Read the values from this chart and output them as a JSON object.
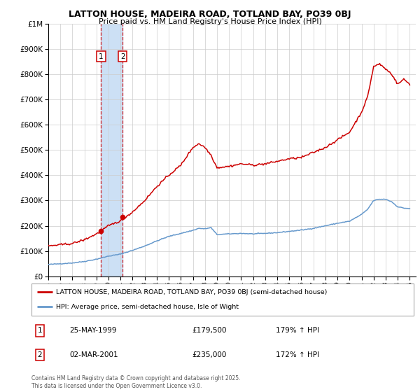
{
  "title": "LATTON HOUSE, MADEIRA ROAD, TOTLAND BAY, PO39 0BJ",
  "subtitle": "Price paid vs. HM Land Registry's House Price Index (HPI)",
  "legend_label_red": "LATTON HOUSE, MADEIRA ROAD, TOTLAND BAY, PO39 0BJ (semi-detached house)",
  "legend_label_blue": "HPI: Average price, semi-detached house, Isle of Wight",
  "footer": "Contains HM Land Registry data © Crown copyright and database right 2025.\nThis data is licensed under the Open Government Licence v3.0.",
  "transaction1": {
    "num": "1",
    "date": "25-MAY-1999",
    "price": "£179,500",
    "hpi": "179% ↑ HPI",
    "year": 1999.38
  },
  "transaction2": {
    "num": "2",
    "date": "02-MAR-2001",
    "price": "£235,000",
    "hpi": "172% ↑ HPI",
    "year": 2001.17
  },
  "red_color": "#cc0000",
  "blue_color": "#6699cc",
  "shade_color": "#cce0f5",
  "background_color": "#ffffff",
  "grid_color": "#cccccc",
  "ylim": [
    0,
    1000000
  ],
  "xlim_start": 1995,
  "xlim_end": 2025.5,
  "t1_marker_price": 179500,
  "t2_marker_price": 235000,
  "t1_year": 1999.38,
  "t2_year": 2001.17,
  "hpi_key_years": [
    1995,
    1996,
    1997,
    1998,
    1999,
    2000,
    2001,
    2002,
    2003,
    2004,
    2005,
    2006,
    2007,
    2007.5,
    2008,
    2008.5,
    2009,
    2010,
    2011,
    2012,
    2013,
    2014,
    2015,
    2016,
    2017,
    2018,
    2019,
    2020,
    2021,
    2021.5,
    2022,
    2022.5,
    2023,
    2023.5,
    2024,
    2024.5,
    2025
  ],
  "hpi_key_vals": [
    47000,
    50000,
    53000,
    59000,
    68000,
    80000,
    88000,
    103000,
    120000,
    140000,
    158000,
    170000,
    182000,
    190000,
    188000,
    193000,
    165000,
    168000,
    170000,
    168000,
    170000,
    173000,
    178000,
    183000,
    190000,
    200000,
    210000,
    218000,
    245000,
    265000,
    300000,
    305000,
    305000,
    295000,
    275000,
    270000,
    268000
  ],
  "red_key_years": [
    1995,
    1996,
    1997,
    1998,
    1999,
    2000,
    2001,
    2002,
    2003,
    2004,
    2005,
    2006,
    2007,
    2007.5,
    2008,
    2008.5,
    2009,
    2010,
    2011,
    2012,
    2013,
    2014,
    2015,
    2016,
    2017,
    2018,
    2019,
    2020,
    2021,
    2021.5,
    2022,
    2022.5,
    2023,
    2023.5,
    2024,
    2024.5,
    2025
  ],
  "red_key_vals": [
    120000,
    125000,
    130000,
    145000,
    168000,
    200000,
    220000,
    255000,
    300000,
    355000,
    400000,
    440000,
    510000,
    525000,
    510000,
    480000,
    430000,
    435000,
    445000,
    440000,
    445000,
    455000,
    465000,
    470000,
    490000,
    510000,
    540000,
    570000,
    650000,
    710000,
    830000,
    840000,
    820000,
    800000,
    760000,
    780000,
    760000
  ]
}
